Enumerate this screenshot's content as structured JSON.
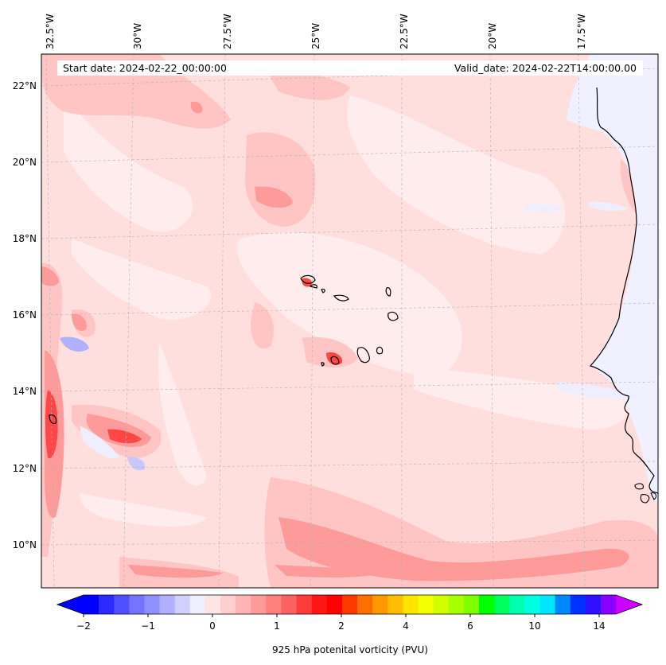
{
  "header": {
    "start_date": "Start date: 2024-02-22_00:00:00",
    "valid_date": "Valid_date: 2024-02-22T14:00:00.00"
  },
  "map": {
    "region": "Eastern tropical Atlantic, Cape Verde islands and West African coast",
    "lon_labels": [
      "32.5°W",
      "30°W",
      "27.5°W",
      "25°W",
      "22.5°W",
      "20°W",
      "17.5°W"
    ],
    "lat_labels": [
      "22°N",
      "20°N",
      "18°N",
      "16°N",
      "14°N",
      "12°N",
      "10°N"
    ],
    "gridlines": true,
    "background_field": "light pink (~0 to 0.5 PVU)",
    "features": [
      {
        "name": "Cape Verde islands",
        "value": "up to ~2 PVU near Fogo/Santiago"
      },
      {
        "name": "Strong band near 32.5°W, 13°N",
        "value": "~1.5 PVU"
      },
      {
        "name": "Feature near 29°W, 12.7°N",
        "value": "~1.5 PVU"
      },
      {
        "name": "Southern band along 10–9°N",
        "value": "~1 PVU"
      },
      {
        "name": "Negative patch near 31.5°W, 15°N",
        "value": "~-0.5 PVU"
      },
      {
        "name": "West African landmass",
        "value": "~0 PVU"
      }
    ]
  },
  "colorbar": {
    "label": "925 hPa potenital vorticity (PVU)",
    "tick_labels": [
      "−2",
      "−1",
      "0",
      "1",
      "2",
      "4",
      "6",
      "10",
      "14"
    ],
    "colors": [
      "#0000ff",
      "#2b2bff",
      "#4f4fff",
      "#7474ff",
      "#8f8fff",
      "#b0b0ff",
      "#d0d0ff",
      "#eeeeff",
      "#ffe4e4",
      "#ffcfcf",
      "#ffb4b4",
      "#ff9a9a",
      "#ff7e7e",
      "#ff6060",
      "#ff3a3a",
      "#ff1515",
      "#ff0000",
      "#ff3a00",
      "#ff6e00",
      "#ff9800",
      "#ffbe00",
      "#ffe400",
      "#f4ff00",
      "#cfff00",
      "#a8ff00",
      "#7fff00",
      "#00ff00",
      "#00ff60",
      "#00ffb0",
      "#00ffe0",
      "#00e6ff",
      "#0088ff",
      "#0030ff",
      "#3010ff",
      "#8a00ff"
    ],
    "extend_low_color": "#0000ff",
    "extend_high_color": "#cc00ff"
  },
  "colors": {
    "land": "#f0f0ff",
    "coast": "#000000",
    "grid": "#b0b0b0"
  }
}
